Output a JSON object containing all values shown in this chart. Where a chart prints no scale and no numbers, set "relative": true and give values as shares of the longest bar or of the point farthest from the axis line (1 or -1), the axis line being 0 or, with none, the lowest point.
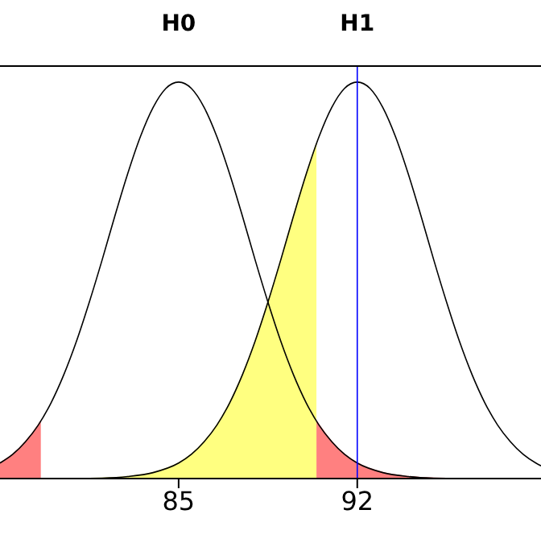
{
  "chart_data": {
    "type": "line",
    "relative": true,
    "tick_labels": "x",
    "xlim": [
      78,
      99.2
    ],
    "xticks": [
      85,
      92
    ],
    "annotations": [
      "H0",
      "H1"
    ],
    "ref_lines": [
      {
        "axis": "x",
        "value": 92,
        "color": "#0000ff"
      }
    ],
    "series": [
      {
        "type": "area",
        "color": "#ff8080",
        "x": [
          78,
          78.5,
          79,
          79.5,
          79.6
        ],
        "values": [
          0.039,
          0.061,
          0.093,
          0.135,
          0.145
        ]
      },
      {
        "type": "area",
        "color": "#ff8080",
        "x": [
          90.4,
          91,
          91.5,
          92,
          93,
          94,
          95,
          96,
          97,
          98,
          99,
          99.2
        ],
        "values": [
          0.145,
          0.093,
          0.061,
          0.039,
          0.015,
          0.005,
          0.001,
          0,
          0,
          0,
          0,
          0
        ]
      },
      {
        "type": "area",
        "color": "#ffff80",
        "x": [
          78,
          79,
          80,
          81,
          82,
          83,
          84,
          85,
          85.5,
          86,
          86.5,
          87,
          87.5,
          88,
          88.5,
          89,
          89.5,
          90,
          90.4
        ],
        "values": [
          0,
          0,
          0,
          0,
          0.001,
          0.005,
          0.015,
          0.039,
          0.061,
          0.093,
          0.135,
          0.191,
          0.262,
          0.347,
          0.445,
          0.551,
          0.662,
          0.768,
          0.844
        ]
      },
      {
        "color": "#000000",
        "x": [
          78,
          78.5,
          79,
          79.5,
          80,
          80.5,
          81,
          81.5,
          82,
          82.5,
          83,
          83.5,
          84,
          84.5,
          85,
          85.5,
          86,
          86.5,
          87,
          87.5,
          88,
          88.5,
          89,
          89.5,
          90,
          90.5,
          91,
          91.5,
          92,
          93,
          94,
          95,
          96,
          97,
          98,
          99,
          99.2
        ],
        "values": [
          0.039,
          0.061,
          0.093,
          0.135,
          0.191,
          0.262,
          0.347,
          0.445,
          0.551,
          0.662,
          0.768,
          0.862,
          0.936,
          0.984,
          1,
          0.984,
          0.936,
          0.862,
          0.768,
          0.662,
          0.551,
          0.445,
          0.347,
          0.262,
          0.191,
          0.135,
          0.093,
          0.061,
          0.039,
          0.015,
          0.005,
          0.001,
          0,
          0,
          0,
          0,
          0
        ]
      },
      {
        "color": "#000000",
        "x": [
          78,
          79,
          80,
          81,
          82,
          83,
          84,
          85,
          85.5,
          86,
          86.5,
          87,
          87.5,
          88,
          88.5,
          89,
          89.5,
          90,
          90.5,
          91,
          91.5,
          92,
          92.5,
          93,
          93.5,
          94,
          94.5,
          95,
          95.5,
          96,
          96.5,
          97,
          97.5,
          98,
          98.5,
          99,
          99.2
        ],
        "values": [
          0,
          0,
          0,
          0,
          0.001,
          0.005,
          0.015,
          0.039,
          0.061,
          0.093,
          0.135,
          0.191,
          0.262,
          0.347,
          0.445,
          0.551,
          0.662,
          0.768,
          0.862,
          0.936,
          0.984,
          1,
          0.984,
          0.936,
          0.862,
          0.768,
          0.662,
          0.551,
          0.445,
          0.347,
          0.262,
          0.191,
          0.135,
          0.093,
          0.061,
          0.039,
          0.032
        ]
      }
    ]
  }
}
